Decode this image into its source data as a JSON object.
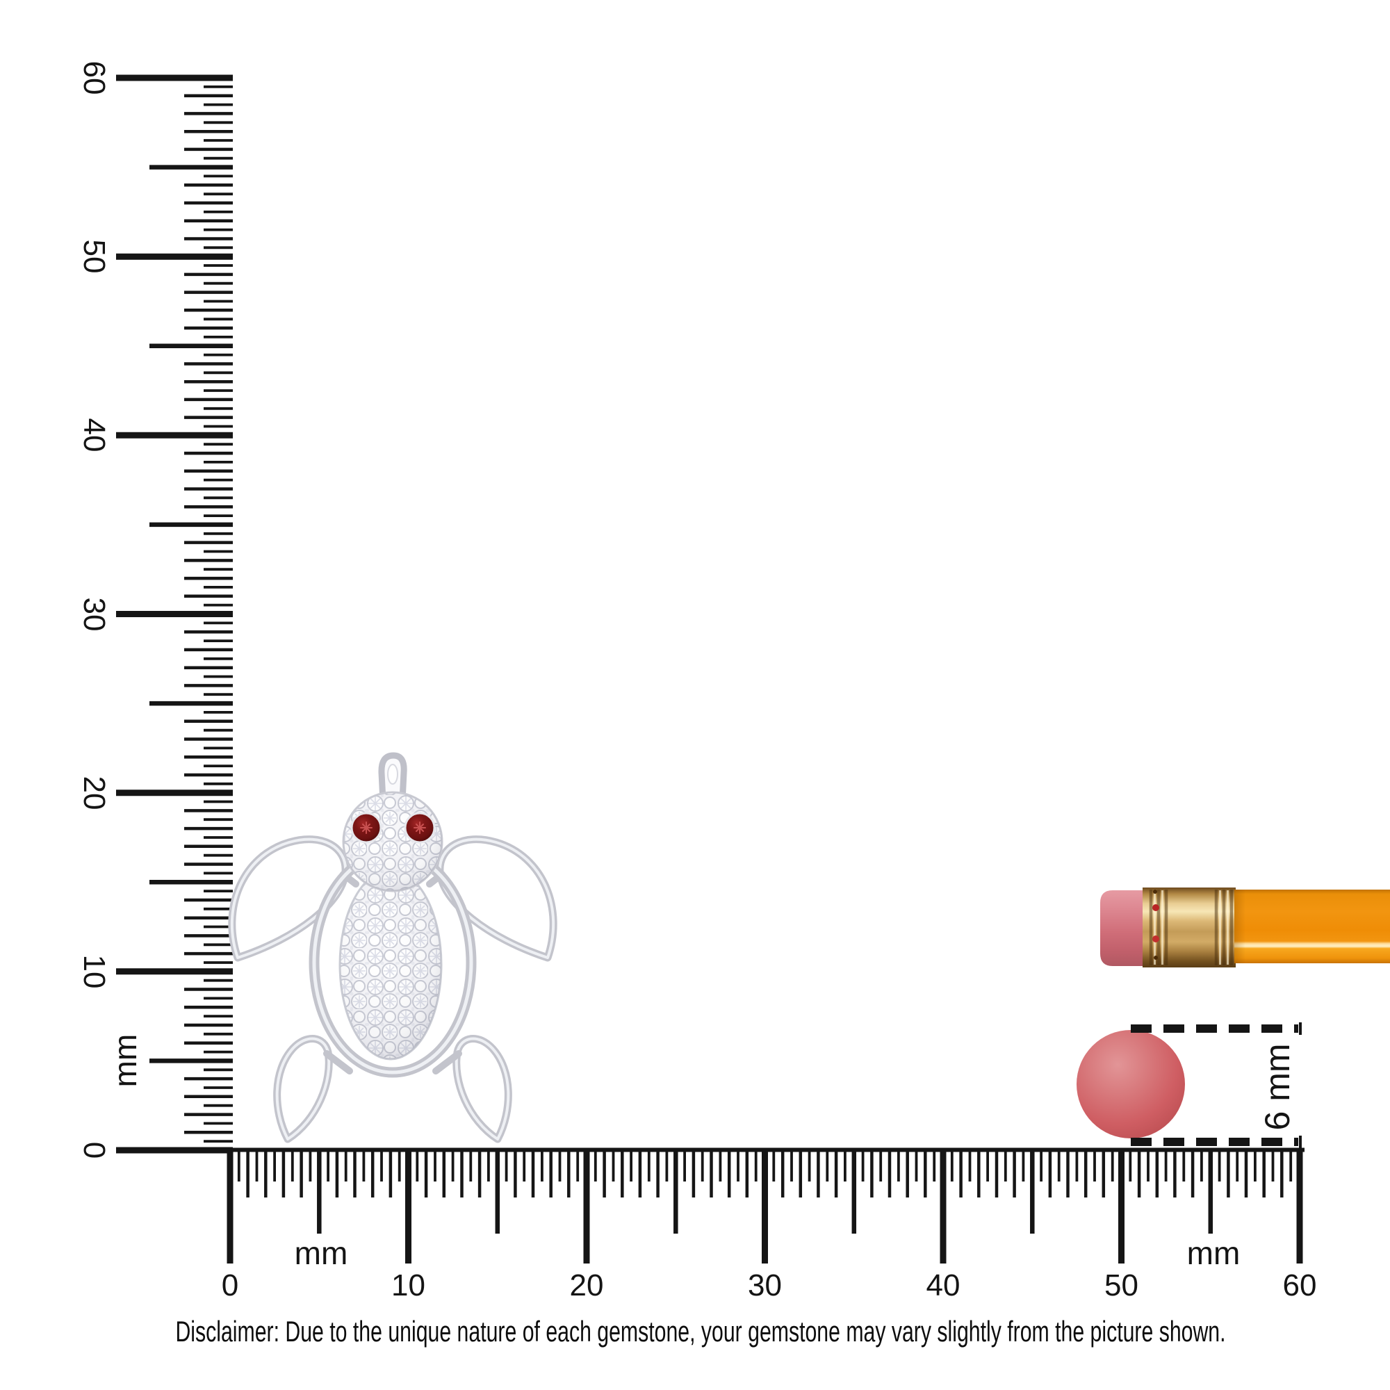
{
  "scene": {
    "background": "#ffffff",
    "subject": "turtle-pendant-size-guide"
  },
  "rulers": {
    "unit_label": "mm",
    "vertical": {
      "min": 0,
      "max": 60,
      "labels": [
        "0",
        "10",
        "20",
        "30",
        "40",
        "50",
        "60"
      ]
    },
    "horizontal": {
      "min": 0,
      "max": 60,
      "labels": [
        "0",
        "10",
        "20",
        "30",
        "40",
        "50",
        "60"
      ]
    }
  },
  "measurement": {
    "label": "6 mm"
  },
  "pendant": {
    "motif": "sea-turtle",
    "stones": "white diamond pave",
    "eye_stones": "garnet"
  },
  "disclaimer": "Disclaimer: Due to the unique nature of each gemstone, your gemstone may vary slightly from the picture shown.",
  "colors": {
    "ink": "#151515",
    "garnet": "#6b1111",
    "garnet_bright": "#a42727",
    "gem_circle": "#cf5e63",
    "gem_circle_light": "#e29597",
    "eraser": "#d06e79",
    "ferrule": "#e9cd93",
    "pencil": "#ef8d06",
    "pencil_highlight": "#fff0c6",
    "metal": "#c3c4cc"
  }
}
